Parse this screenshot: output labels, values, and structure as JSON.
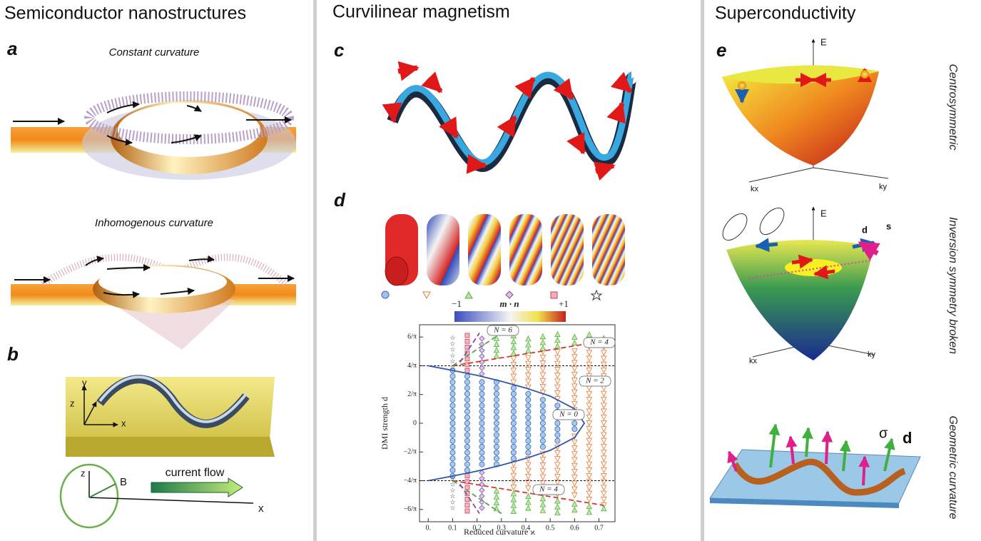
{
  "headers": [
    "Semiconductor nanostructures",
    "Curvilinear magnetism",
    "Superconductivity"
  ],
  "panel_labels": [
    "a",
    "b",
    "c",
    "d",
    "e"
  ],
  "panel_a": {
    "captions": [
      "Constant curvature",
      "Inhomogenous curvature"
    ]
  },
  "panel_b": {
    "axes_top": [
      "y",
      "z",
      "x"
    ],
    "axes_bottom": [
      "z",
      "B",
      "x"
    ],
    "arrow_label": "current flow"
  },
  "panel_d": {
    "colorbar": [
      "−1",
      "m · n",
      "+1"
    ]
  },
  "panel_e": {
    "axis_labels": [
      "E",
      "kx",
      "ky",
      "E",
      "kx",
      "ky"
    ],
    "vector_labels": [
      "d",
      "s",
      "σ",
      "d"
    ],
    "row_labels": [
      "Centrosymmetric",
      "Inversion symmetry broken",
      "Geometric curvature"
    ]
  },
  "chart_data": {
    "type": "scatter",
    "xlabel": "Reduced curvature ϰ",
    "ylabel": "DMI strength d",
    "xlim": [
      -0.03,
      0.76
    ],
    "xticks": [
      {
        "value": 0,
        "label": "0."
      },
      0.1,
      0.2,
      0.3,
      0.4,
      0.5,
      0.6,
      0.7
    ],
    "ylim": [
      -2.15,
      2.15
    ],
    "yticks": [
      {
        "value": -1.91,
        "label": "−6/π"
      },
      {
        "value": -1.273,
        "label": "−4/π"
      },
      {
        "value": -0.637,
        "label": "−2/π"
      },
      0,
      {
        "value": 0.637,
        "label": "2/π"
      },
      {
        "value": 1.273,
        "label": "4/π"
      },
      {
        "value": 1.91,
        "label": "6/π"
      }
    ],
    "hlines": [
      1.273,
      -1.273
    ],
    "series": [
      {
        "marker": "circle",
        "color": "#3a66b5",
        "x": [
          0.1,
          0.16,
          0.22,
          0.28,
          0.35,
          0.41,
          0.47,
          0.53,
          0.6
        ],
        "inner": [
          0,
          0,
          0,
          0,
          0,
          0,
          0,
          0,
          0
        ],
        "outer": [
          1.17,
          1.1,
          1.03,
          0.95,
          0.84,
          0.73,
          0.61,
          0.47,
          0.23
        ]
      },
      {
        "marker": "tri-down",
        "color": "#e8742e",
        "x": [
          0.35,
          0.41,
          0.47,
          0.53,
          0.6,
          0.66,
          0.72
        ],
        "inner": [
          0.84,
          0.73,
          0.61,
          0.47,
          0.23,
          0,
          0
        ],
        "outer": [
          1.49,
          1.55,
          1.6,
          1.65,
          1.72,
          1.77,
          1.82
        ]
      },
      {
        "marker": "tri-up",
        "color": "#5cb045",
        "x": [
          0.28,
          0.35,
          0.41,
          0.47,
          0.53,
          0.6,
          0.66,
          0.72
        ],
        "inner": [
          1.43,
          1.49,
          1.55,
          1.6,
          1.65,
          1.72,
          1.77,
          1.82
        ],
        "outer": [
          2.0,
          2.0,
          2.0,
          2.0,
          2.0,
          2.0,
          2.0,
          2.0
        ]
      },
      {
        "marker": "diamond",
        "color": "#80509f",
        "x": [
          0.22
        ],
        "inner": [
          1.03
        ],
        "outer": [
          2.0
        ]
      },
      {
        "marker": "square",
        "color": "#c8406a",
        "x": [
          0.16
        ],
        "inner": [
          1.1
        ],
        "outer": [
          2.0
        ]
      },
      {
        "marker": "star",
        "color": "#333333",
        "x": [
          0.1
        ],
        "inner": [
          1.17
        ],
        "outer": [
          2.0
        ]
      }
    ],
    "curves": [
      {
        "color": "#2f55b0",
        "dash": false,
        "x": [
          0,
          0.1,
          0.2,
          0.3,
          0.4,
          0.5,
          0.6,
          0.64,
          0.6,
          0.5,
          0.4,
          0.3,
          0.2,
          0.1,
          0
        ],
        "y": [
          1.273,
          1.17,
          1.06,
          0.93,
          0.78,
          0.6,
          0.32,
          0,
          -0.32,
          -0.6,
          -0.78,
          -0.93,
          -1.06,
          -1.17,
          -1.273
        ]
      },
      {
        "color": "#d43a2a",
        "dash": true,
        "x": [
          0.1,
          0.72
        ],
        "y": [
          1.273,
          1.82
        ]
      },
      {
        "color": "#d43a2a",
        "dash": true,
        "x": [
          0.1,
          0.72
        ],
        "y": [
          -1.273,
          -1.82
        ]
      },
      {
        "color": "#4fa84a",
        "dash": true,
        "x": [
          0.1,
          0.3
        ],
        "y": [
          1.273,
          2.0
        ]
      },
      {
        "color": "#4fa84a",
        "dash": true,
        "x": [
          0.1,
          0.3
        ],
        "y": [
          -1.273,
          -2.0
        ]
      },
      {
        "color": "#8a4aa0",
        "dash": true,
        "x": [
          0.13,
          0.21
        ],
        "y": [
          1.35,
          2.0
        ]
      },
      {
        "color": "#8a4aa0",
        "dash": true,
        "x": [
          0.13,
          0.21
        ],
        "y": [
          -1.35,
          -2.0
        ]
      }
    ],
    "annotations": [
      "N = 6",
      "N = 4",
      "N = 2",
      "N = 0",
      "N = 4"
    ]
  }
}
